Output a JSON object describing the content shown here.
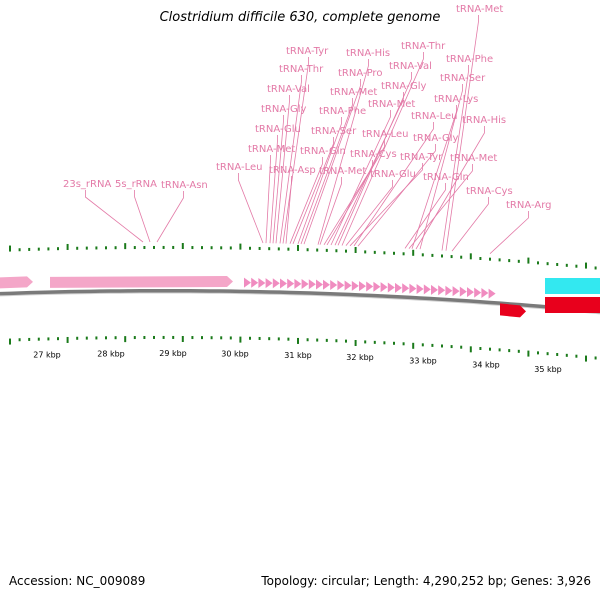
{
  "title": "Clostridium difficile 630, complete genome",
  "footer": {
    "accession": "Accession: NC_009089",
    "topology": "Topology: circular; Length: 4,290,252 bp; Genes: 3,926"
  },
  "colors": {
    "rrna": "#f4a6c8",
    "trna": "#f08cc0",
    "gene_red": "#e8001c",
    "gene_cyan": "#33e8f0",
    "label": "#e37aa7",
    "tick": "#1a7a1a",
    "backbone": "#7a7a7a"
  },
  "scale_labels": [
    "27 kbp",
    "28 kbp",
    "29 kbp",
    "30 kbp",
    "31 kbp",
    "32 kbp",
    "33 kbp",
    "34 kbp",
    "35 kbp"
  ],
  "feature_labels": [
    "23s_rRNA",
    "5s_rRNA",
    "tRNA-Asn",
    "tRNA-Leu",
    "tRNA-Met",
    "tRNA-Glu",
    "tRNA-Gly",
    "tRNA-Val",
    "tRNA-Thr",
    "tRNA-Tyr",
    "tRNA-Asp",
    "tRNA-Gln",
    "tRNA-Ser",
    "tRNA-Phe",
    "tRNA-Met",
    "tRNA-Pro",
    "tRNA-His",
    "tRNA-Met",
    "tRNA-Cys",
    "tRNA-Leu",
    "tRNA-Met",
    "tRNA-Gly",
    "tRNA-Val",
    "tRNA-Thr",
    "tRNA-Glu",
    "tRNA-Tyr",
    "tRNA-Leu",
    "tRNA-Gly",
    "tRNA-Gln",
    "tRNA-Met",
    "tRNA-Lys",
    "tRNA-His",
    "tRNA-Ser",
    "tRNA-Phe",
    "tRNA-Met",
    "tRNA-Cys",
    "tRNA-Arg"
  ]
}
